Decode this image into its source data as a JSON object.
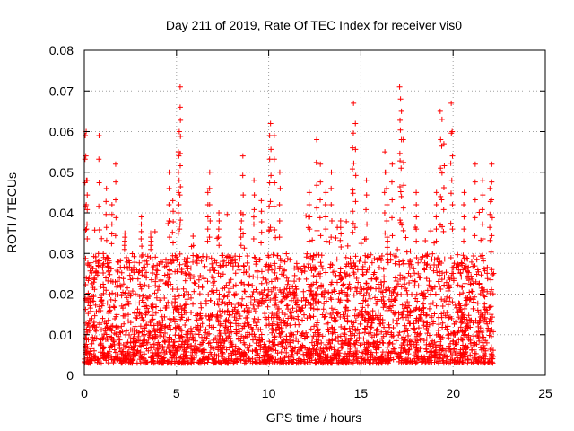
{
  "chart_data": {
    "type": "scatter",
    "title": "Day 211 of 2019, Rate Of TEC Index for receiver vis0",
    "xlabel": "GPS time / hours",
    "ylabel": "ROTI / TECUs",
    "xlim": [
      0,
      25
    ],
    "ylim": [
      0,
      0.08
    ],
    "x_ticks": [
      0,
      5,
      10,
      15,
      20,
      25
    ],
    "x_tick_labels": [
      "0",
      "5",
      "10",
      "15",
      "20",
      "25"
    ],
    "y_ticks": [
      0,
      0.01,
      0.02,
      0.03,
      0.04,
      0.05,
      0.06,
      0.07,
      0.08
    ],
    "y_tick_labels": [
      "0",
      "0.01",
      "0.02",
      "0.03",
      "0.04",
      "0.05",
      "0.06",
      "0.07",
      "0.08"
    ],
    "grid": true,
    "marker": "+",
    "color": "#ff0000",
    "series": [
      {
        "name": "ROTI",
        "x_range": [
          0,
          22.2
        ],
        "typical_min": 0.003,
        "typical_max": 0.03,
        "description_points": [
          [
            0.05,
            0.059
          ],
          [
            0.1,
            0.06
          ],
          [
            0.15,
            0.048
          ],
          [
            0.8,
            0.059
          ],
          [
            1.7,
            0.052
          ],
          [
            1.2,
            0.046
          ],
          [
            1.5,
            0.042
          ],
          [
            2.2,
            0.035
          ],
          [
            3.1,
            0.039
          ],
          [
            3.6,
            0.035
          ],
          [
            4.6,
            0.05
          ],
          [
            4.8,
            0.043
          ],
          [
            5.2,
            0.071
          ],
          [
            5.2,
            0.066
          ],
          [
            5.15,
            0.06
          ],
          [
            5.1,
            0.055
          ],
          [
            6.8,
            0.05
          ],
          [
            6.7,
            0.045
          ],
          [
            7.3,
            0.04
          ],
          [
            8.6,
            0.054
          ],
          [
            8.5,
            0.04
          ],
          [
            9.2,
            0.048
          ],
          [
            9.6,
            0.043
          ],
          [
            10.1,
            0.062
          ],
          [
            10.05,
            0.059
          ],
          [
            10.3,
            0.059
          ],
          [
            10.6,
            0.05
          ],
          [
            12.2,
            0.045
          ],
          [
            12.6,
            0.058
          ],
          [
            12.8,
            0.052
          ],
          [
            13.1,
            0.045
          ],
          [
            13.4,
            0.05
          ],
          [
            13.9,
            0.038
          ],
          [
            14.6,
            0.067
          ],
          [
            14.7,
            0.062
          ],
          [
            14.55,
            0.056
          ],
          [
            15.3,
            0.048
          ],
          [
            16.3,
            0.055
          ],
          [
            16.4,
            0.05
          ],
          [
            16.7,
            0.052
          ],
          [
            17.1,
            0.071
          ],
          [
            17.15,
            0.068
          ],
          [
            17.2,
            0.065
          ],
          [
            17.3,
            0.058
          ],
          [
            18.0,
            0.045
          ],
          [
            19.1,
            0.045
          ],
          [
            19.3,
            0.065
          ],
          [
            19.4,
            0.063
          ],
          [
            19.5,
            0.057
          ],
          [
            19.9,
            0.067
          ],
          [
            19.95,
            0.06
          ],
          [
            20.6,
            0.045
          ],
          [
            21.2,
            0.052
          ],
          [
            21.6,
            0.048
          ],
          [
            22.1,
            0.052
          ],
          [
            22.0,
            0.046
          ]
        ]
      }
    ]
  }
}
